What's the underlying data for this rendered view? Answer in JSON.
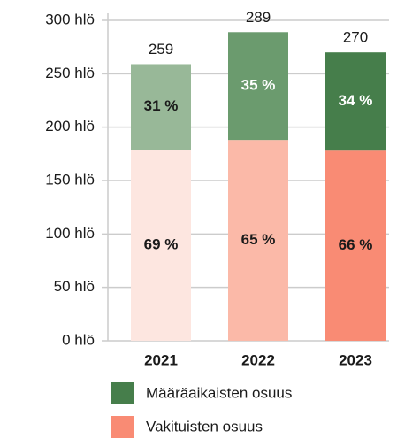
{
  "chart_data": {
    "type": "stacked_bar",
    "categories": [
      "2021",
      "2022",
      "2023"
    ],
    "totals": [
      259,
      289,
      270
    ],
    "series": [
      {
        "name": "Vakituisten osuus",
        "color": "#f98b74",
        "colors": [
          "#fde6e0",
          "#fbb9a8",
          "#f98b74"
        ],
        "values": [
          179,
          188,
          178
        ],
        "percent_labels": [
          "69 %",
          "65 %",
          "66 %"
        ],
        "label_colors": [
          "#1a1a1a",
          "#1a1a1a",
          "#1a1a1a"
        ]
      },
      {
        "name": "Määräaikaisten osuus",
        "color": "#467e4b",
        "colors": [
          "#98b898",
          "#6b9b6e",
          "#467e4b"
        ],
        "values": [
          80,
          101,
          92
        ],
        "percent_labels": [
          "31 %",
          "35 %",
          "34 %"
        ],
        "label_colors": [
          "#1a1a1a",
          "#ffffff",
          "#ffffff"
        ]
      }
    ],
    "ylim": [
      0,
      300
    ],
    "yticks": [
      {
        "value": 0,
        "label": "0 hlö"
      },
      {
        "value": 50,
        "label": "50 hlö"
      },
      {
        "value": 100,
        "label": "100 hlö"
      },
      {
        "value": 150,
        "label": "150 hlö"
      },
      {
        "value": 200,
        "label": "200 hlö"
      },
      {
        "value": 250,
        "label": "250 hlö"
      },
      {
        "value": 300,
        "label": "300 hlö"
      }
    ],
    "grid": true
  }
}
